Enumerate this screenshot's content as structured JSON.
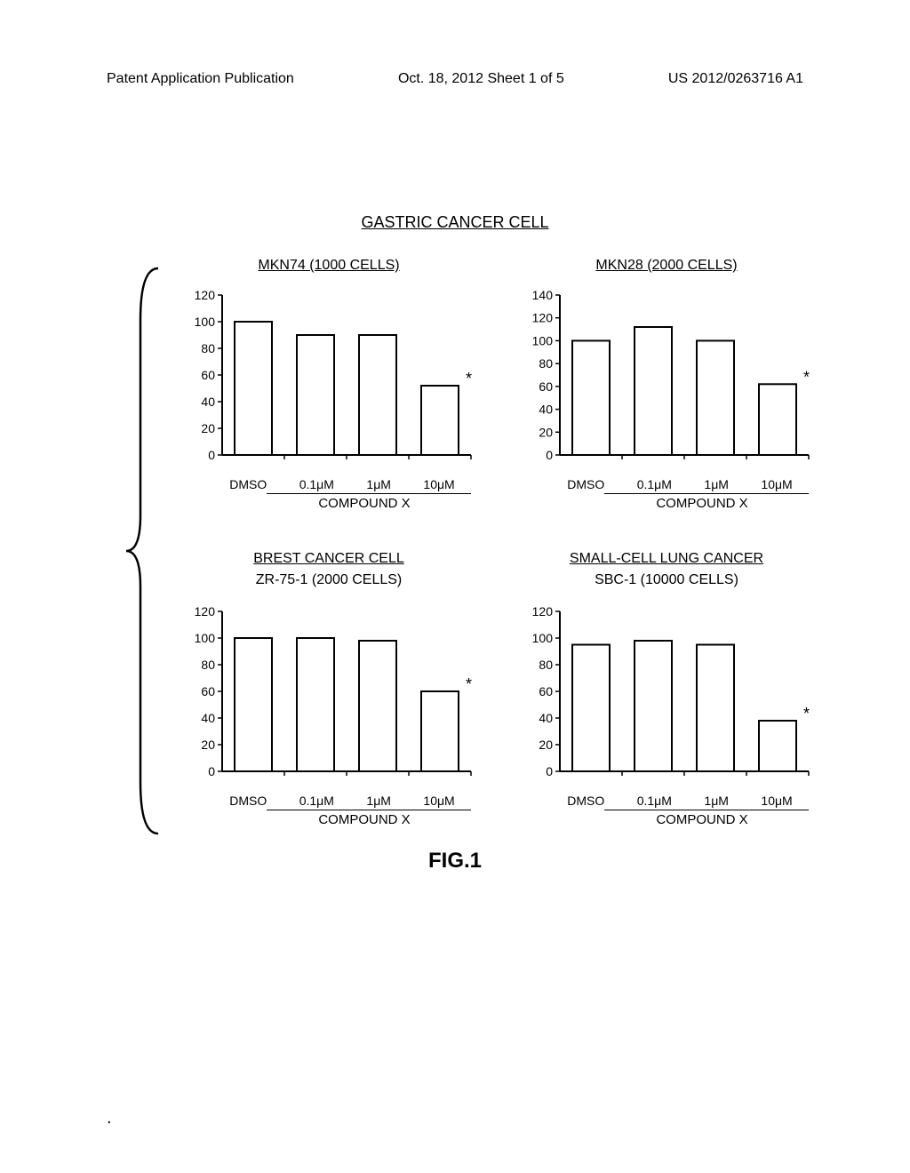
{
  "header": {
    "left": "Patent Application Publication",
    "center": "Oct. 18, 2012  Sheet 1 of 5",
    "right": "US 2012/0263716 A1"
  },
  "main_title": "GASTRIC CANCER CELL",
  "fig_label": "FIG.1",
  "x_categories": [
    "DMSO",
    "0.1μM",
    "1μM",
    "10μM"
  ],
  "compound_label": "COMPOUND X",
  "charts": [
    {
      "title": "MKN74 (1000 CELLS)",
      "subtitle": "",
      "values": [
        100,
        90,
        90,
        52
      ],
      "ymax": 120,
      "ytick_step": 20,
      "significance_idx": 3,
      "bar_color": "#ffffff",
      "border_color": "#000000",
      "has_top_subtitle": false
    },
    {
      "title": "MKN28 (2000 CELLS)",
      "subtitle": "",
      "values": [
        100,
        112,
        100,
        62
      ],
      "ymax": 140,
      "ytick_step": 20,
      "significance_idx": 3,
      "bar_color": "#ffffff",
      "border_color": "#000000",
      "has_top_subtitle": false
    },
    {
      "title": "BREST CANCER CELL",
      "subtitle": "ZR-75-1 (2000 CELLS)",
      "values": [
        100,
        100,
        98,
        60
      ],
      "ymax": 120,
      "ytick_step": 20,
      "significance_idx": 3,
      "bar_color": "#ffffff",
      "border_color": "#000000",
      "has_top_subtitle": true
    },
    {
      "title": "SMALL-CELL LUNG CANCER",
      "subtitle": "SBC-1 (10000 CELLS)",
      "values": [
        95,
        98,
        95,
        38
      ],
      "ymax": 120,
      "ytick_step": 20,
      "significance_idx": 3,
      "bar_color": "#ffffff",
      "border_color": "#000000",
      "has_top_subtitle": true
    }
  ],
  "styling": {
    "background_color": "#ffffff",
    "text_color": "#000000",
    "axis_color": "#000000",
    "bar_border_width": 2,
    "title_fontsize": 16,
    "axis_fontsize": 14,
    "significance_marker": "*"
  }
}
